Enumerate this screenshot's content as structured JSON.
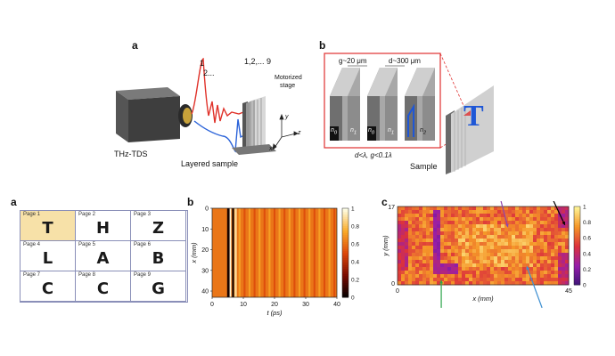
{
  "figure_top": {
    "a": {
      "label": "a",
      "device": "THz-TDS",
      "pulse_numbers_1": "1",
      "pulse_numbers_2": "2...",
      "stack_numbers": "1,2,... 9",
      "stage_line1": "Motorized",
      "stage_line2": "stage",
      "sample_label": "Layered sample",
      "axis_y": "y",
      "axis_z": "z",
      "axis_x": "x"
    },
    "b": {
      "label": "b",
      "g_label": "g~20 μm",
      "d_label": "d~300 μm",
      "n0": "n",
      "n0_sub": "0",
      "n1": "n",
      "n1_sub": "1",
      "n2": "n",
      "n2_sub": "2",
      "condition": "d<λ, g<0.1λ",
      "sample_label": "Sample",
      "letter": "T"
    }
  },
  "figure_bottom": {
    "a": {
      "label": "a",
      "pages": [
        {
          "page": "Page 1",
          "letter": "T"
        },
        {
          "page": "Page 2",
          "letter": "H"
        },
        {
          "page": "Page 3",
          "letter": "Z"
        },
        {
          "page": "Page 4",
          "letter": "L"
        },
        {
          "page": "Page 5",
          "letter": "A"
        },
        {
          "page": "Page 6",
          "letter": "B"
        },
        {
          "page": "Page 7",
          "letter": "C"
        },
        {
          "page": "Page 8",
          "letter": "C"
        },
        {
          "page": "Page 9",
          "letter": "G"
        }
      ]
    },
    "b": {
      "label": "b",
      "xlabel": "t (ps)",
      "ylabel": "x (mm)",
      "xticks": [
        "0",
        "10",
        "20",
        "30",
        "40"
      ],
      "yticks": [
        "0",
        "10",
        "20",
        "30",
        "40"
      ],
      "cbar_ticks": [
        "1",
        "0.8",
        "0.6",
        "0.4",
        "0.2",
        "0"
      ]
    },
    "c": {
      "label": "c",
      "xlabel": "x (mm)",
      "ylabel": "y (mm)",
      "x_min": "0",
      "x_max": "45",
      "y_min": "0",
      "y_max": "17",
      "cbar_ticks": [
        "1",
        "0.8",
        "0.6",
        "0.4",
        "0.2",
        "0"
      ],
      "arrows": [
        {
          "color": "#8e44ad"
        },
        {
          "color": "#000000"
        },
        {
          "color": "#2ba34a"
        },
        {
          "color": "#3d8fd1"
        }
      ]
    }
  },
  "chart_data": [
    {
      "type": "heatmap",
      "title": "",
      "xlabel": "t (ps)",
      "ylabel": "x (mm)",
      "xlim": [
        0,
        40
      ],
      "ylim": [
        0,
        43
      ],
      "colorbar_range": [
        0,
        1
      ],
      "colormap": "black-red-orange-yellow-white",
      "pulse_peak_t_ps": 6
    },
    {
      "type": "heatmap",
      "title": "",
      "xlabel": "x (mm)",
      "ylabel": "y (mm)",
      "xlim": [
        0,
        45
      ],
      "ylim": [
        0,
        17
      ],
      "colorbar_range": [
        0,
        1
      ],
      "colormap": "purple-red-orange-yellow"
    }
  ],
  "colors": {
    "frame_red": "#e03030",
    "pulse_red": "#e0322a",
    "pulse_blue": "#2b63d9",
    "grid_blue": "#8a8fb8",
    "highlight": "#f7e1a8"
  }
}
